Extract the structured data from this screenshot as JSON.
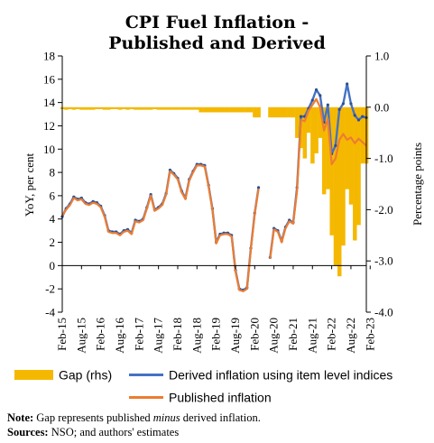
{
  "title_line1": "CPI Fuel Inflation -",
  "title_line2": "Published and Derived",
  "note_label": "Note:",
  "note_pre": " Gap represents published ",
  "note_em": "minus",
  "note_post": " derived inflation.",
  "sources_label": "Sources:",
  "sources_text": " NSO; and authors' estimates",
  "chart_data": {
    "type": "line",
    "title": "CPI Fuel Inflation - Published and Derived",
    "ylabel": "YoY, per cent",
    "y2label": "Percentage points",
    "ylim": [
      -4,
      18
    ],
    "y2lim": [
      -4.0,
      1.0
    ],
    "yticks": [
      -4,
      -2,
      0,
      2,
      4,
      6,
      8,
      10,
      12,
      14,
      16,
      18
    ],
    "y2ticks": [
      "1.0",
      "0.0",
      "-1.0",
      "-2.0",
      "-3.0",
      "-4.0"
    ],
    "xticks": [
      "Feb-15",
      "Aug-15",
      "Feb-16",
      "Aug-16",
      "Feb-17",
      "Aug-17",
      "Feb-18",
      "Aug-18",
      "Feb-19",
      "Aug-19",
      "Feb-20",
      "Aug-20",
      "Feb-21",
      "Aug-21",
      "Feb-22",
      "Aug-22",
      "Feb-23"
    ],
    "x_start": "Feb-15",
    "colors": {
      "gap": "#F5B800",
      "derived": "#4472C4",
      "published": "#ED7D31"
    },
    "series": [
      {
        "name": "Derived inflation using item level indices",
        "axis": "left",
        "values": [
          4.2,
          4.9,
          5.3,
          5.9,
          5.7,
          5.8,
          5.4,
          5.3,
          5.5,
          5.4,
          5.1,
          4.3,
          3.0,
          2.9,
          2.9,
          2.7,
          3.0,
          3.1,
          2.8,
          3.9,
          3.8,
          4.0,
          5.0,
          6.1,
          4.8,
          5.0,
          5.3,
          6.2,
          8.2,
          7.9,
          7.5,
          6.4,
          5.8,
          7.4,
          8.1,
          8.7,
          8.7,
          8.6,
          6.9,
          4.9,
          2.0,
          2.7,
          2.8,
          2.8,
          2.6,
          -0.4,
          -2.0,
          -2.1,
          -1.9,
          1.5,
          4.5,
          6.7,
          null,
          null,
          0.7,
          3.2,
          3.0,
          2.1,
          3.3,
          3.9,
          3.7,
          6.7,
          12.8,
          12.8,
          13.5,
          14.2,
          15.1,
          14.6,
          12.3,
          13.8,
          9.6,
          10.3,
          13.4,
          13.9,
          15.6,
          13.9,
          12.9,
          12.5,
          12.8,
          12.7
        ]
      },
      {
        "name": "Published inflation",
        "axis": "left",
        "values": [
          4.3,
          4.8,
          5.2,
          5.8,
          5.6,
          5.7,
          5.3,
          5.2,
          5.4,
          5.3,
          5.0,
          4.2,
          2.9,
          2.8,
          2.8,
          2.6,
          2.9,
          3.0,
          2.7,
          3.8,
          3.7,
          3.9,
          4.9,
          6.0,
          4.7,
          4.9,
          5.2,
          6.1,
          8.1,
          7.8,
          7.4,
          6.3,
          5.7,
          7.3,
          8.0,
          8.6,
          8.6,
          8.5,
          6.8,
          4.8,
          1.9,
          2.6,
          2.7,
          2.7,
          2.5,
          -0.5,
          -2.1,
          -2.2,
          -2.0,
          1.4,
          4.4,
          6.6,
          null,
          null,
          0.6,
          3.1,
          2.9,
          2.0,
          3.2,
          3.8,
          3.6,
          6.4,
          12.5,
          12.4,
          13.3,
          13.8,
          14.3,
          13.6,
          11.6,
          12.6,
          8.7,
          9.2,
          10.8,
          11.3,
          10.8,
          11.0,
          10.5,
          10.9,
          10.6,
          10.3
        ]
      },
      {
        "name": "Gap (rhs)",
        "axis": "right",
        "type": "bar",
        "values": [
          0.0,
          -0.05,
          0.0,
          -0.05,
          0.0,
          -0.05,
          -0.05,
          -0.05,
          -0.05,
          0.0,
          0.0,
          -0.05,
          -0.05,
          0.0,
          0.0,
          -0.05,
          0.0,
          -0.05,
          0.0,
          -0.05,
          -0.05,
          -0.05,
          -0.05,
          -0.05,
          0.0,
          -0.05,
          -0.05,
          -0.05,
          -0.05,
          -0.05,
          -0.05,
          -0.05,
          -0.05,
          -0.05,
          -0.05,
          -0.05,
          -0.1,
          -0.1,
          -0.1,
          -0.1,
          -0.1,
          -0.1,
          -0.1,
          -0.1,
          -0.1,
          -0.1,
          -0.1,
          -0.1,
          -0.1,
          -0.1,
          -0.2,
          -0.2,
          null,
          null,
          -0.2,
          -0.2,
          -0.2,
          -0.2,
          -0.2,
          -0.2,
          -0.2,
          -0.6,
          -0.8,
          -1.0,
          -0.5,
          -1.1,
          -0.9,
          -0.6,
          -1.7,
          -1.6,
          -2.5,
          -3.1,
          -3.3,
          -2.7,
          -1.6,
          -1.9,
          -2.6,
          -2.3,
          -1.1,
          -1.1
        ]
      }
    ],
    "legend": "bottom",
    "grid": false
  }
}
